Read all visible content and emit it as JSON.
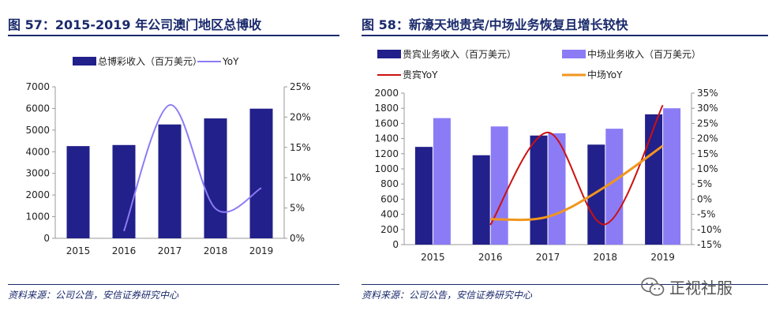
{
  "colors": {
    "title": "#1a2a6c",
    "navy_bar": "#22208a",
    "lavender_bar": "#8b7cf6",
    "light_purple_line": "#8b7cf6",
    "red_line": "#cc1111",
    "orange_line": "#f0961e",
    "axis": "#999999",
    "text": "#222222"
  },
  "left_panel": {
    "title": "图 57：2015-2019 年公司澳门地区总博收",
    "source": "资料来源：公司公告，安信证券研究中心"
  },
  "right_panel": {
    "title": "图 58：新濠天地贵宾/中场业务恢复且增长较快",
    "source": "资料来源：公司公告，安信证券研究中心"
  },
  "watermark": {
    "icon": "wechat-icon",
    "text": "正视社服"
  },
  "chart_data": [
    {
      "type": "bar",
      "title": "2015-2019 年公司澳门地区总博收",
      "categories": [
        "2015",
        "2016",
        "2017",
        "2018",
        "2019"
      ],
      "series": [
        {
          "name": "总博彩收入（百万美元）",
          "kind": "bar",
          "axis": "left",
          "values": [
            4260,
            4310,
            5260,
            5540,
            5990
          ]
        },
        {
          "name": "YoY",
          "kind": "line",
          "axis": "right",
          "values": [
            null,
            1.2,
            22.0,
            4.9,
            8.3
          ]
        }
      ],
      "y_left": {
        "min": 0,
        "max": 7000,
        "step": 1000,
        "ticks": [
          "0",
          "1000",
          "2000",
          "3000",
          "4000",
          "5000",
          "6000",
          "7000"
        ]
      },
      "y_right": {
        "min": 0,
        "max": 25,
        "step": 5,
        "ticks": [
          "0%",
          "5%",
          "10%",
          "15%",
          "20%",
          "25%"
        ]
      },
      "legend": "top"
    },
    {
      "type": "bar",
      "title": "新濠天地贵宾/中场业务恢复且增长较快",
      "categories": [
        "2015",
        "2016",
        "2017",
        "2018",
        "2019"
      ],
      "series": [
        {
          "name": "贵宾业务收入（百万美元）",
          "kind": "bar",
          "axis": "left",
          "values": [
            1290,
            1180,
            1440,
            1320,
            1720
          ]
        },
        {
          "name": "中场业务收入（百万美元）",
          "kind": "bar",
          "axis": "left",
          "values": [
            1670,
            1560,
            1470,
            1530,
            1800
          ]
        },
        {
          "name": "贵宾YoY",
          "kind": "line",
          "axis": "right",
          "values": [
            null,
            -8.5,
            22.0,
            -8.3,
            31.0
          ]
        },
        {
          "name": "中场YoY",
          "kind": "line",
          "axis": "right",
          "values": [
            null,
            -6.6,
            -5.8,
            4.1,
            17.6
          ]
        }
      ],
      "y_left": {
        "min": 0,
        "max": 2000,
        "step": 200,
        "ticks": [
          "0",
          "200",
          "400",
          "600",
          "800",
          "1000",
          "1200",
          "1400",
          "1600",
          "1800",
          "2000"
        ]
      },
      "y_right": {
        "min": -15,
        "max": 35,
        "step": 5,
        "ticks": [
          "-15%",
          "-10%",
          "-5%",
          "0%",
          "5%",
          "10%",
          "15%",
          "20%",
          "25%",
          "30%",
          "35%"
        ]
      },
      "legend": "top"
    }
  ]
}
